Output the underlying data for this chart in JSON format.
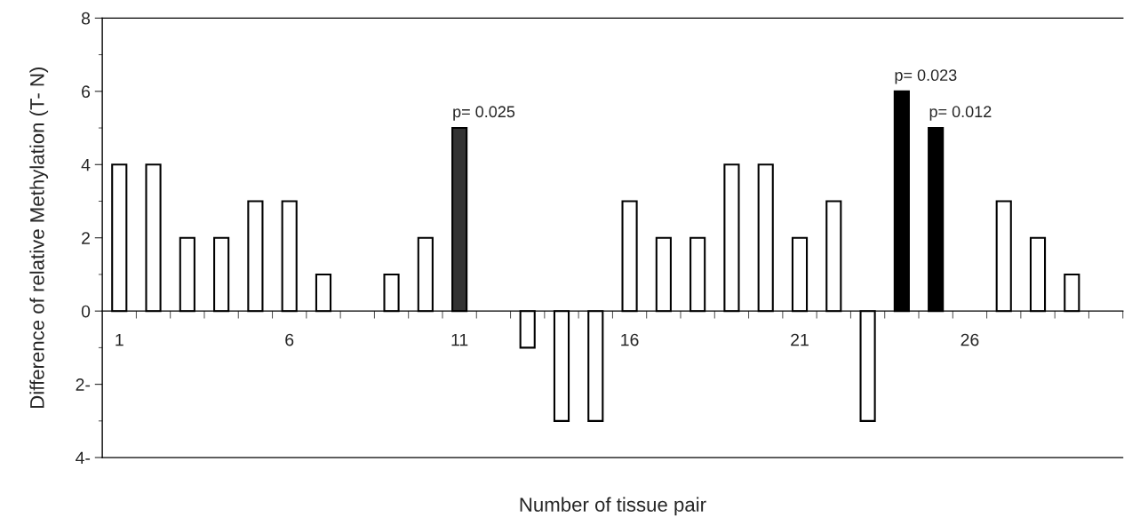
{
  "chart_data": {
    "type": "bar",
    "xlabel": "Number of tissue pair",
    "ylabel": "Difference of relative Methylation (T- N)",
    "categories": [
      "1",
      null,
      null,
      null,
      null,
      "6",
      null,
      null,
      null,
      null,
      "11",
      null,
      null,
      null,
      null,
      "16",
      null,
      null,
      null,
      null,
      "21",
      null,
      null,
      null,
      null,
      "26",
      null,
      null,
      null,
      null
    ],
    "values": [
      4,
      4,
      2,
      2,
      3,
      3,
      1,
      null,
      1,
      2,
      5,
      null,
      -1,
      -3,
      -3,
      3,
      2,
      2,
      4,
      4,
      2,
      3,
      -3,
      6,
      5,
      null,
      3,
      2,
      1,
      null
    ],
    "colors": [
      "#ffffff",
      "#ffffff",
      "#ffffff",
      "#ffffff",
      "#ffffff",
      "#ffffff",
      "#ffffff",
      "#ffffff",
      "#ffffff",
      "#ffffff",
      "#333333",
      "#ffffff",
      "#ffffff",
      "#ffffff",
      "#ffffff",
      "#ffffff",
      "#ffffff",
      "#ffffff",
      "#ffffff",
      "#ffffff",
      "#ffffff",
      "#ffffff",
      "#ffffff",
      "#000000",
      "#000000",
      "#ffffff",
      "#ffffff",
      "#ffffff",
      "#ffffff",
      "#ffffff"
    ],
    "annotations": [
      {
        "text": "p= 0.025",
        "x": "11",
        "y": 5
      },
      "p= 0.023",
      "p= 0.012"
    ],
    "ylim": [
      -4,
      8
    ],
    "yticks": [
      {
        "value": -4,
        "label": "4-"
      },
      {
        "value": -2,
        "label": "2-"
      },
      0,
      2,
      4,
      6,
      8
    ],
    "grid": false,
    "legend": false
  }
}
